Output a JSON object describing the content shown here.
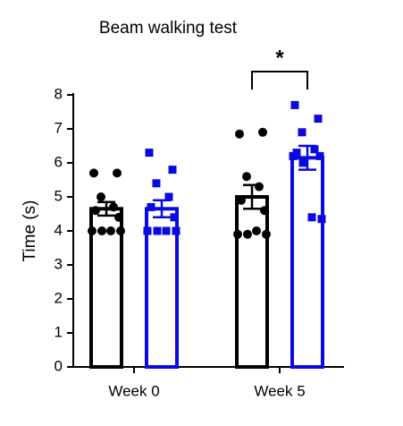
{
  "chart_data": {
    "type": "bar",
    "title": "Beam walking test",
    "y_label": "Time (s)",
    "categories": [
      "Week 0",
      "Week 5"
    ],
    "series": [
      {
        "color": "#000000",
        "marker": "circle",
        "values": [
          4.65,
          5.0
        ],
        "errors": [
          0.2,
          0.35
        ],
        "points": [
          [
            5.7,
            5.7,
            5.0,
            4.7,
            4.6,
            4.4,
            4.0,
            4.0,
            4.0,
            4.0
          ],
          [
            6.85,
            6.9,
            5.6,
            5.3,
            4.9,
            4.6,
            3.9,
            3.9,
            4.0,
            3.9
          ]
        ]
      },
      {
        "color": "#0a0ae0",
        "marker": "square",
        "values": [
          4.65,
          6.15
        ],
        "errors": [
          0.25,
          0.35
        ],
        "points": [
          [
            6.3,
            5.8,
            5.4,
            5.0,
            4.7,
            4.4,
            4.0,
            4.0,
            4.0,
            4.0
          ],
          [
            7.7,
            7.3,
            6.9,
            6.4,
            6.3,
            6.2,
            6.2,
            6.0,
            4.4,
            4.35
          ]
        ]
      }
    ],
    "ylim": [
      0,
      8
    ],
    "yticks": [
      0,
      1,
      2,
      3,
      4,
      5,
      6,
      7,
      8
    ],
    "significance": {
      "category": 1,
      "text": "*"
    }
  }
}
